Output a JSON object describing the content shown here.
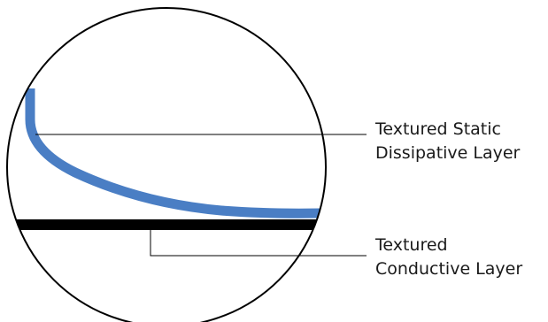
{
  "labels": {
    "dissipative": {
      "line1": "Textured Static",
      "line2": "Dissipative Layer"
    },
    "conductive": {
      "line1": "Textured",
      "line2": "Conductive Layer"
    }
  },
  "colors": {
    "dissipative_layer": "#4a7ec4",
    "conductive_layer": "#000000",
    "outline": "#000000",
    "leader_line": "#000000"
  }
}
